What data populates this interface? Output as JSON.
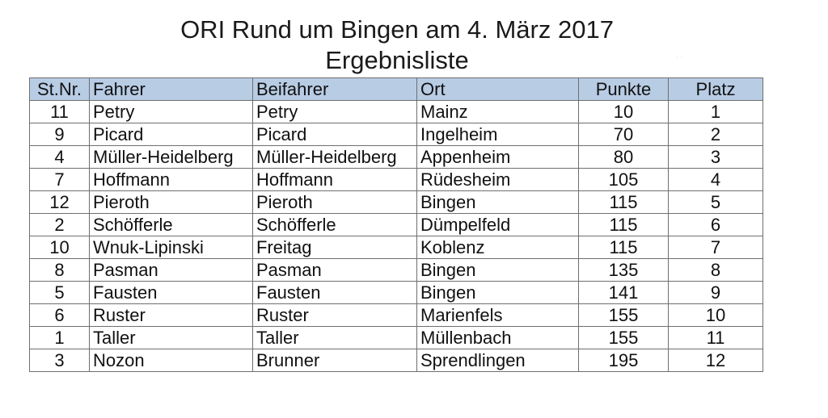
{
  "document": {
    "title": "ORI Rund um Bingen am 4. März 2017",
    "subtitle": "Ergebnisliste"
  },
  "table": {
    "headers": {
      "stnr": "St.Nr.",
      "fahrer": "Fahrer",
      "beifahrer": "Beifahrer",
      "ort": "Ort",
      "punkte": "Punkte",
      "platz": "Platz"
    },
    "header_color": "#b8cce4",
    "rows": [
      {
        "stnr": "11",
        "fahrer": "Petry",
        "beifahrer": "Petry",
        "ort": "Mainz",
        "punkte": "10",
        "platz": "1"
      },
      {
        "stnr": "9",
        "fahrer": "Picard",
        "beifahrer": "Picard",
        "ort": "Ingelheim",
        "punkte": "70",
        "platz": "2"
      },
      {
        "stnr": "4",
        "fahrer": "Müller-Heidelberg",
        "beifahrer": "Müller-Heidelberg",
        "ort": "Appenheim",
        "punkte": "80",
        "platz": "3"
      },
      {
        "stnr": "7",
        "fahrer": "Hoffmann",
        "beifahrer": "Hoffmann",
        "ort": "Rüdesheim",
        "punkte": "105",
        "platz": "4"
      },
      {
        "stnr": "12",
        "fahrer": "Pieroth",
        "beifahrer": "Pieroth",
        "ort": "Bingen",
        "punkte": "115",
        "platz": "5"
      },
      {
        "stnr": "2",
        "fahrer": "Schöfferle",
        "beifahrer": "Schöfferle",
        "ort": "Dümpelfeld",
        "punkte": "115",
        "platz": "6"
      },
      {
        "stnr": "10",
        "fahrer": "Wnuk-Lipinski",
        "beifahrer": "Freitag",
        "ort": "Koblenz",
        "punkte": "115",
        "platz": "7"
      },
      {
        "stnr": "8",
        "fahrer": "Pasman",
        "beifahrer": "Pasman",
        "ort": "Bingen",
        "punkte": "135",
        "platz": "8"
      },
      {
        "stnr": "5",
        "fahrer": "Fausten",
        "beifahrer": "Fausten",
        "ort": "Bingen",
        "punkte": "141",
        "platz": "9"
      },
      {
        "stnr": "6",
        "fahrer": "Ruster",
        "beifahrer": "Ruster",
        "ort": "Marienfels",
        "punkte": "155",
        "platz": "10"
      },
      {
        "stnr": "1",
        "fahrer": "Taller",
        "beifahrer": "Taller",
        "ort": "Müllenbach",
        "punkte": "155",
        "platz": "11"
      },
      {
        "stnr": "3",
        "fahrer": "Nozon",
        "beifahrer": "Brunner",
        "ort": "Sprendlingen",
        "punkte": "195",
        "platz": "12"
      }
    ]
  }
}
